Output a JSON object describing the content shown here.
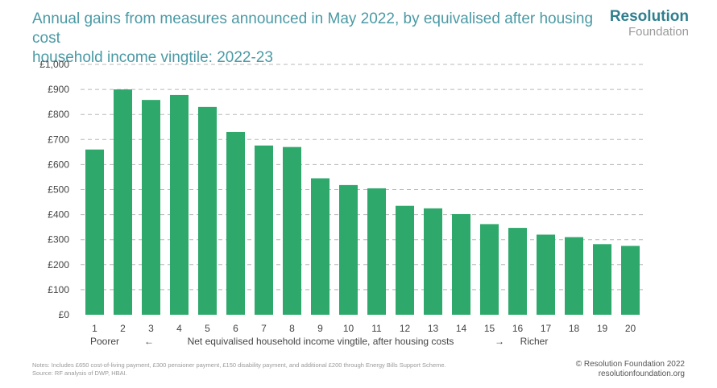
{
  "header": {
    "title_line1": "Annual gains from measures announced in May 2022, by equivalised after housing cost",
    "title_line2": "household income vingtile: 2022-23"
  },
  "brand": {
    "name": "Resolution",
    "sub": "Foundation"
  },
  "footer": {
    "notes": "Notes: Includes £650 cost-of-living payment, £300 pensioner payment, £150 disability payment, and additional £200 through Energy Bills Support Scheme.",
    "source": "Source: RF analysis of DWP, HBAI.",
    "copyright": "© Resolution Foundation 2022",
    "website": "resolutionfoundation.org"
  },
  "colors": {
    "bar": "#2ea86b",
    "grid": "#b8b8b8",
    "title": "#4a9aa5",
    "brand": "#2f7f8e"
  },
  "chart_data": {
    "type": "bar",
    "title": "Annual gains from measures announced in May 2022, by equivalised after housing cost household income vingtile: 2022-23",
    "categories": [
      "1",
      "2",
      "3",
      "4",
      "5",
      "6",
      "7",
      "8",
      "9",
      "10",
      "11",
      "12",
      "13",
      "14",
      "15",
      "16",
      "17",
      "18",
      "19",
      "20"
    ],
    "values": [
      660,
      900,
      858,
      878,
      830,
      730,
      676,
      670,
      545,
      518,
      505,
      435,
      425,
      402,
      362,
      347,
      320,
      310,
      282,
      275
    ],
    "ylim": [
      0,
      1000
    ],
    "ytick_values": [
      0,
      100,
      200,
      300,
      400,
      500,
      600,
      700,
      800,
      900,
      1000
    ],
    "ytick_labels": [
      "£0",
      "£100",
      "£200",
      "£300",
      "£400",
      "£500",
      "£600",
      "£700",
      "£800",
      "£900",
      "£1,000"
    ],
    "grid": true,
    "xlabel": {
      "left": "Poorer",
      "left_arrow": "←",
      "middle": "Net equivalised household income vingtile, after housing costs",
      "right_arrow": "→",
      "right": "Richer"
    },
    "ylabel": ""
  }
}
